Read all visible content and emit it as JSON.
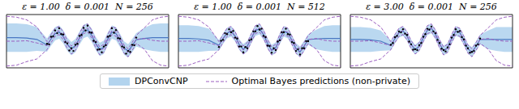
{
  "chart_data": [
    {
      "type": "line",
      "title": "ε = 1.00  δ = 0.001  N = 256",
      "xlim": [
        -2,
        2
      ],
      "ylim": [
        -3,
        3
      ],
      "tick_labels": false,
      "legend": "bottom",
      "x": [
        -2,
        -1.75,
        -1.5,
        -1.25,
        -1,
        -0.9,
        -0.8,
        -0.7,
        -0.6,
        -0.5,
        -0.4,
        -0.3,
        -0.2,
        -0.1,
        0,
        0.1,
        0.2,
        0.3,
        0.4,
        0.5,
        0.6,
        0.7,
        0.8,
        0.9,
        1,
        1.1,
        1.2,
        1.4,
        1.6,
        1.8,
        2
      ],
      "series": [
        {
          "name": "DPConvCNP",
          "type": "area",
          "color": "#4a78c2",
          "values": [
            0.4,
            0.4,
            0.35,
            0.2,
            -0.43,
            0.26,
            0.85,
            1.02,
            0.51,
            -0.34,
            -0.85,
            -0.51,
            0.34,
            1.1,
            1.28,
            0.68,
            -0.26,
            -0.94,
            -0.68,
            0.26,
            1.02,
            0.85,
            0.09,
            -0.77,
            -1.1,
            -0.51,
            0.17,
            0.3,
            0.4,
            0.4,
            0.4
          ],
          "upper": [
            2.0,
            2.0,
            1.9,
            1.6,
            0.32,
            1.01,
            1.6,
            1.77,
            1.26,
            0.41,
            -0.1,
            0.24,
            1.09,
            1.85,
            2.03,
            1.43,
            0.49,
            -0.19,
            0.07,
            1.01,
            1.77,
            1.6,
            0.84,
            -0.02,
            -0.35,
            0.24,
            0.92,
            1.5,
            1.9,
            2.0,
            2.0
          ],
          "lower": [
            -1.2,
            -1.2,
            -1.2,
            -1.1,
            -1.18,
            -0.49,
            0.1,
            0.27,
            -0.24,
            -1.09,
            -1.6,
            -1.26,
            -0.41,
            0.35,
            0.53,
            -0.07,
            -1.01,
            -1.69,
            -1.43,
            -0.49,
            0.27,
            0.1,
            -0.66,
            -1.52,
            -1.85,
            -1.26,
            -0.58,
            -0.9,
            -1.1,
            -1.2,
            -1.2
          ]
        },
        {
          "name": "Optimal Bayes predictions (non-private)",
          "type": "line",
          "color": "#9b5fc0",
          "line_style": "dashed",
          "values": [
            0,
            0,
            0.05,
            -0.2,
            -0.5,
            0.3,
            1.0,
            1.2,
            0.6,
            -0.4,
            -1.0,
            -0.6,
            0.4,
            1.3,
            1.5,
            0.8,
            -0.3,
            -1.1,
            -0.8,
            0.3,
            1.2,
            1.0,
            0.1,
            -0.9,
            -1.3,
            -0.6,
            0.2,
            0.3,
            0.1,
            0,
            0
          ],
          "upper": [
            2.8,
            2.7,
            2.4,
            1.6,
            -0.05,
            0.75,
            1.45,
            1.65,
            1.05,
            0.05,
            -0.55,
            -0.15,
            0.85,
            1.75,
            1.95,
            1.25,
            0.15,
            -0.65,
            -0.35,
            0.75,
            1.65,
            1.45,
            0.55,
            -0.45,
            -0.85,
            -0.15,
            0.65,
            1.5,
            2.4,
            2.7,
            2.8
          ],
          "lower": [
            -2.8,
            -2.7,
            -2.3,
            -2.0,
            -0.95,
            -0.15,
            0.55,
            0.75,
            0.15,
            -0.85,
            -1.45,
            -1.05,
            -0.05,
            0.85,
            1.05,
            0.35,
            -0.75,
            -1.55,
            -1.25,
            -0.15,
            0.75,
            0.55,
            -0.35,
            -1.35,
            -1.75,
            -1.05,
            -0.25,
            -0.9,
            -2.2,
            -2.7,
            -2.8
          ]
        }
      ],
      "points": {
        "type": "scatter",
        "color": "#000000",
        "x": [
          -1,
          -0.95,
          -0.9,
          -0.85,
          -0.8,
          -0.75,
          -0.7,
          -0.65,
          -0.6,
          -0.55,
          -0.5,
          -0.45,
          -0.4,
          -0.35,
          -0.3,
          -0.25,
          -0.2,
          -0.15,
          -0.1,
          -0.05,
          0,
          0.05,
          0.1,
          0.15,
          0.2,
          0.25,
          0.3,
          0.35,
          0.4,
          0.45,
          0.5,
          0.55,
          0.6,
          0.65,
          0.7,
          0.75,
          0.8,
          0.85,
          0.9,
          0.95,
          1,
          1.05,
          1.1,
          1.15,
          1.2
        ],
        "y": [
          -0.3,
          -0.35,
          0.5,
          0.55,
          1.2,
          0.9,
          1.45,
          0.8,
          0.75,
          -0.1,
          -0.25,
          -1.05,
          -0.8,
          -1.1,
          -0.4,
          -0.3,
          0.6,
          0.7,
          1.5,
          1.2,
          1.75,
          1.0,
          0.95,
          0.05,
          -0.1,
          -0.95,
          -0.9,
          -1.25,
          -0.6,
          -0.45,
          0.5,
          0.6,
          1.45,
          0.95,
          1.25,
          0.35,
          0.3,
          -0.6,
          -0.7,
          -1.4,
          -1.1,
          -1.2,
          -0.4,
          -0.45,
          0.4
        ]
      }
    },
    {
      "type": "line",
      "title": "ε = 1.00  δ = 0.001  N = 512",
      "xlim": [
        -2,
        2
      ],
      "ylim": [
        -3,
        3
      ],
      "tick_labels": false,
      "legend": "bottom",
      "x": [
        -2,
        -1.75,
        -1.5,
        -1.25,
        -1,
        -0.9,
        -0.8,
        -0.7,
        -0.6,
        -0.5,
        -0.4,
        -0.3,
        -0.2,
        -0.1,
        0,
        0.1,
        0.2,
        0.3,
        0.4,
        0.5,
        0.6,
        0.7,
        0.8,
        0.9,
        1,
        1.1,
        1.2,
        1.4,
        1.6,
        1.8,
        2
      ],
      "series": [
        {
          "name": "DPConvCNP",
          "type": "area",
          "color": "#4a78c2",
          "values": [
            0.3,
            0.3,
            0.25,
            0.1,
            -0.46,
            0.28,
            0.92,
            1.1,
            0.55,
            -0.37,
            -0.92,
            -0.55,
            0.37,
            1.2,
            1.38,
            0.74,
            -0.28,
            -1.01,
            -0.74,
            0.28,
            1.1,
            0.92,
            0.09,
            -0.83,
            -1.2,
            -0.55,
            0.18,
            0.25,
            0.3,
            0.3,
            0.3
          ],
          "upper": [
            1.8,
            1.8,
            1.7,
            1.4,
            0.14,
            0.88,
            1.52,
            1.7,
            1.15,
            0.23,
            -0.32,
            0.05,
            0.97,
            1.8,
            1.98,
            1.34,
            0.32,
            -0.41,
            -0.14,
            0.88,
            1.7,
            1.52,
            0.69,
            -0.23,
            -0.6,
            0.05,
            0.78,
            1.3,
            1.7,
            1.8,
            1.8
          ],
          "lower": [
            -1.2,
            -1.2,
            -1.2,
            -1.1,
            -1.06,
            -0.32,
            0.32,
            0.5,
            -0.05,
            -0.97,
            -1.52,
            -1.15,
            -0.23,
            0.6,
            0.78,
            0.14,
            -0.88,
            -1.61,
            -1.34,
            -0.32,
            0.5,
            0.32,
            -0.51,
            -1.43,
            -1.8,
            -1.15,
            -0.42,
            -0.9,
            -1.1,
            -1.2,
            -1.2
          ]
        },
        {
          "name": "Optimal Bayes predictions (non-private)",
          "type": "line",
          "color": "#9b5fc0",
          "line_style": "dashed",
          "values": [
            0,
            0,
            0.05,
            -0.2,
            -0.5,
            0.3,
            1.0,
            1.2,
            0.6,
            -0.4,
            -1.0,
            -0.6,
            0.4,
            1.3,
            1.5,
            0.8,
            -0.3,
            -1.1,
            -0.8,
            0.3,
            1.2,
            1.0,
            0.1,
            -0.9,
            -1.3,
            -0.6,
            0.2,
            0.3,
            0.1,
            0,
            0
          ],
          "upper": [
            2.8,
            2.7,
            2.4,
            1.6,
            -0.05,
            0.75,
            1.45,
            1.65,
            1.05,
            0.05,
            -0.55,
            -0.15,
            0.85,
            1.75,
            1.95,
            1.25,
            0.15,
            -0.65,
            -0.35,
            0.75,
            1.65,
            1.45,
            0.55,
            -0.45,
            -0.85,
            -0.15,
            0.65,
            1.5,
            2.4,
            2.7,
            2.8
          ],
          "lower": [
            -2.8,
            -2.7,
            -2.3,
            -2.0,
            -0.95,
            -0.15,
            0.55,
            0.75,
            0.15,
            -0.85,
            -1.45,
            -1.05,
            -0.05,
            0.85,
            1.05,
            0.35,
            -0.75,
            -1.55,
            -1.25,
            -0.15,
            0.75,
            0.55,
            -0.35,
            -1.35,
            -1.75,
            -1.05,
            -0.25,
            -0.9,
            -2.2,
            -2.7,
            -2.8
          ]
        }
      ],
      "points": {
        "type": "scatter",
        "color": "#000000",
        "x": [
          -1,
          -0.95,
          -0.9,
          -0.85,
          -0.8,
          -0.75,
          -0.7,
          -0.65,
          -0.6,
          -0.55,
          -0.5,
          -0.45,
          -0.4,
          -0.35,
          -0.3,
          -0.25,
          -0.2,
          -0.15,
          -0.1,
          -0.05,
          0,
          0.05,
          0.1,
          0.15,
          0.2,
          0.25,
          0.3,
          0.35,
          0.4,
          0.45,
          0.5,
          0.55,
          0.6,
          0.65,
          0.7,
          0.75,
          0.8,
          0.85,
          0.9,
          0.95,
          1,
          1.05,
          1.1,
          1.15,
          1.2
        ],
        "y": [
          -0.65,
          0.05,
          0.15,
          0.9,
          0.8,
          1.35,
          1.0,
          1.15,
          0.4,
          0.3,
          -0.6,
          -0.6,
          -1.25,
          -0.65,
          -0.8,
          0.1,
          0.2,
          1.1,
          1.1,
          1.7,
          1.3,
          1.4,
          0.6,
          0.45,
          -0.5,
          -0.55,
          -1.3,
          -0.8,
          -1.0,
          -0.05,
          0.1,
          1.0,
          1.0,
          1.4,
          0.8,
          0.75,
          -0.1,
          -0.2,
          -1.1,
          -0.9,
          -1.5,
          -0.8,
          -0.8,
          0.0,
          0.0
        ]
      }
    },
    {
      "type": "line",
      "title": "ε = 3.00  δ = 0.001  N = 256",
      "xlim": [
        -2,
        2
      ],
      "ylim": [
        -3,
        3
      ],
      "tick_labels": false,
      "legend": "bottom",
      "x": [
        -2,
        -1.75,
        -1.5,
        -1.25,
        -1,
        -0.9,
        -0.8,
        -0.7,
        -0.6,
        -0.5,
        -0.4,
        -0.3,
        -0.2,
        -0.1,
        0,
        0.1,
        0.2,
        0.3,
        0.4,
        0.5,
        0.6,
        0.7,
        0.8,
        0.9,
        1,
        1.1,
        1.2,
        1.4,
        1.6,
        1.8,
        2
      ],
      "series": [
        {
          "name": "DPConvCNP",
          "type": "area",
          "color": "#4a78c2",
          "values": [
            0.2,
            0.2,
            0.15,
            0.0,
            -0.48,
            0.29,
            0.95,
            1.14,
            0.57,
            -0.38,
            -0.95,
            -0.57,
            0.38,
            1.24,
            1.43,
            0.76,
            -0.29,
            -1.05,
            -0.76,
            0.29,
            1.14,
            0.95,
            0.1,
            -0.86,
            -1.24,
            -0.57,
            0.19,
            0.2,
            0.2,
            0.2,
            0.2
          ],
          "upper": [
            1.6,
            1.6,
            1.5,
            1.2,
            0.07,
            0.84,
            1.5,
            1.69,
            1.12,
            0.17,
            -0.4,
            -0.02,
            0.93,
            1.79,
            1.98,
            1.31,
            0.26,
            -0.5,
            -0.21,
            0.84,
            1.69,
            1.5,
            0.65,
            -0.31,
            -0.69,
            -0.02,
            0.74,
            1.2,
            1.6,
            1.6,
            1.6
          ],
          "lower": [
            -1.2,
            -1.2,
            -1.2,
            -1.1,
            -1.03,
            -0.26,
            0.4,
            0.59,
            0.02,
            -0.93,
            -1.5,
            -1.12,
            -0.17,
            0.69,
            0.88,
            0.21,
            -0.84,
            -1.6,
            -1.31,
            -0.26,
            0.59,
            0.4,
            -0.45,
            -1.41,
            -1.79,
            -1.12,
            -0.36,
            -0.9,
            -1.1,
            -1.2,
            -1.2
          ]
        },
        {
          "name": "Optimal Bayes predictions (non-private)",
          "type": "line",
          "color": "#9b5fc0",
          "line_style": "dashed",
          "values": [
            0,
            0,
            0.05,
            -0.2,
            -0.5,
            0.3,
            1.0,
            1.2,
            0.6,
            -0.4,
            -1.0,
            -0.6,
            0.4,
            1.3,
            1.5,
            0.8,
            -0.3,
            -1.1,
            -0.8,
            0.3,
            1.2,
            1.0,
            0.1,
            -0.9,
            -1.3,
            -0.6,
            0.2,
            0.3,
            0.1,
            0,
            0
          ],
          "upper": [
            2.8,
            2.7,
            2.4,
            1.6,
            -0.05,
            0.75,
            1.45,
            1.65,
            1.05,
            0.05,
            -0.55,
            -0.15,
            0.85,
            1.75,
            1.95,
            1.25,
            0.15,
            -0.65,
            -0.35,
            0.75,
            1.65,
            1.45,
            0.55,
            -0.45,
            -0.85,
            -0.15,
            0.65,
            1.5,
            2.4,
            2.7,
            2.8
          ],
          "lower": [
            -2.8,
            -2.7,
            -2.3,
            -2.0,
            -0.95,
            -0.15,
            0.55,
            0.75,
            0.15,
            -0.85,
            -1.45,
            -1.05,
            -0.05,
            0.85,
            1.05,
            0.35,
            -0.75,
            -1.55,
            -1.25,
            -0.15,
            0.75,
            0.55,
            -0.35,
            -1.35,
            -1.75,
            -1.05,
            -0.25,
            -0.9,
            -2.2,
            -2.7,
            -2.8
          ]
        }
      ],
      "points": {
        "type": "scatter",
        "color": "#000000",
        "x": [
          -1,
          -0.95,
          -0.9,
          -0.85,
          -0.8,
          -0.75,
          -0.7,
          -0.65,
          -0.6,
          -0.55,
          -0.5,
          -0.45,
          -0.4,
          -0.35,
          -0.3,
          -0.25,
          -0.2,
          -0.15,
          -0.1,
          -0.05,
          0,
          0.05,
          0.1,
          0.15,
          0.2,
          0.25,
          0.3,
          0.35,
          0.4,
          0.45,
          0.5,
          0.55,
          0.6,
          0.65,
          0.7,
          0.75,
          0.8,
          0.85,
          0.9,
          0.95,
          1,
          1.05,
          1.1,
          1.15,
          1.2
        ],
        "y": [
          -0.4,
          -0.2,
          0.45,
          0.6,
          1.1,
          1.0,
          1.35,
          0.85,
          0.7,
          -0.05,
          -0.35,
          -0.95,
          -0.9,
          -1.0,
          -0.45,
          -0.2,
          0.5,
          0.8,
          1.4,
          1.3,
          1.65,
          1.1,
          0.9,
          0.15,
          -0.2,
          -0.85,
          -1.0,
          -1.15,
          -0.7,
          -0.35,
          0.4,
          0.7,
          1.35,
          1.05,
          1.15,
          0.45,
          0.2,
          -0.5,
          -0.8,
          -1.3,
          -1.2,
          -1.1,
          -0.5,
          -0.35,
          0.3
        ]
      }
    }
  ]
}
